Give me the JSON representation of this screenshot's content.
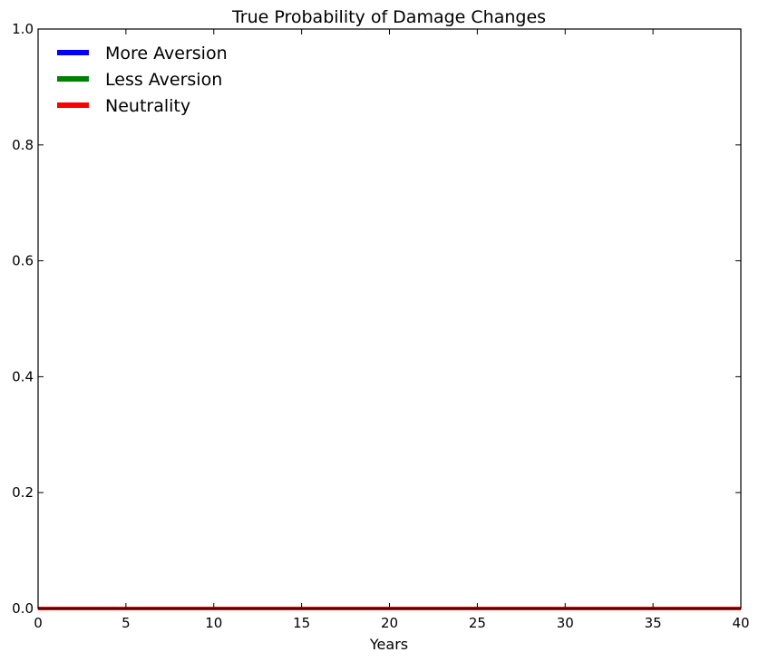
{
  "chart_data": {
    "type": "line",
    "title": "True Probability of Damage Changes",
    "xlabel": "Years",
    "ylabel": "",
    "xlim": [
      0,
      40
    ],
    "ylim": [
      0,
      1
    ],
    "x_ticks": [
      0,
      5,
      10,
      15,
      20,
      25,
      30,
      35,
      40
    ],
    "x_tick_labels": [
      "0",
      "5",
      "10",
      "15",
      "20",
      "25",
      "30",
      "35",
      "40"
    ],
    "y_ticks": [
      0,
      0.2,
      0.4,
      0.6,
      0.8,
      1.0
    ],
    "y_tick_labels": [
      "0.0",
      "0.2",
      "0.4",
      "0.6",
      "0.8",
      "1.0"
    ],
    "grid": false,
    "legend_position": "top-left",
    "x": [
      0,
      40
    ],
    "series": [
      {
        "name": "More Aversion",
        "color": "#0000ff",
        "values": [
          0,
          0
        ]
      },
      {
        "name": "Less Aversion",
        "color": "#008000",
        "values": [
          0,
          0
        ]
      },
      {
        "name": "Neutrality",
        "color": "#ff0000",
        "values": [
          0,
          0
        ]
      }
    ]
  }
}
